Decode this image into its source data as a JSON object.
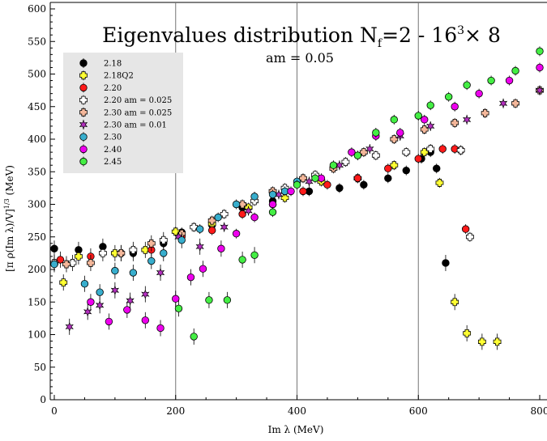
{
  "chart_data": {
    "type": "scatter",
    "title": "Eigenvalues distribution N",
    "title_sub": "f",
    "title_mid": "=2 - 16",
    "title_sup": "3",
    "title_end": "× 8",
    "subtitle": "am = 0.05",
    "xlabel": "Im λ (MeV)",
    "ylabel": "[π ρ(Im λ)/V]",
    "ylabel_sup": "1/3",
    "ylabel_end": " (MeV)",
    "xlim": [
      -5,
      800
    ],
    "ylim": [
      0,
      600
    ],
    "xticks": [
      0,
      200,
      400,
      600,
      800
    ],
    "xtick_labels": [
      "0",
      "200",
      "400",
      "600",
      "800"
    ],
    "yticks": [
      0,
      50,
      100,
      150,
      200,
      250,
      300,
      350,
      400,
      450,
      500,
      550,
      600
    ],
    "ytick_labels": [
      "0",
      "50",
      "100",
      "150",
      "200",
      "250",
      "300",
      "350",
      "400",
      "450",
      "500",
      "550",
      "600"
    ],
    "vlines": [
      200,
      400,
      600
    ],
    "grid": false,
    "legend_position": "top-left",
    "series": [
      {
        "name": "2.18",
        "color": "#000000",
        "marker": "circle",
        "points": [
          [
            0,
            232
          ],
          [
            40,
            230
          ],
          [
            80,
            235
          ],
          [
            130,
            225
          ],
          [
            180,
            240
          ],
          [
            210,
            257
          ],
          [
            260,
            268
          ],
          [
            310,
            295
          ],
          [
            360,
            305
          ],
          [
            420,
            320
          ],
          [
            470,
            325
          ],
          [
            510,
            330
          ],
          [
            550,
            340
          ],
          [
            580,
            352
          ],
          [
            605,
            370
          ],
          [
            620,
            380
          ],
          [
            630,
            355
          ],
          [
            645,
            210
          ]
        ]
      },
      {
        "name": "2.18Q2",
        "color": "#ffff33",
        "marker": "cross",
        "points": [
          [
            15,
            180
          ],
          [
            40,
            220
          ],
          [
            100,
            225
          ],
          [
            150,
            230
          ],
          [
            200,
            258
          ],
          [
            260,
            270
          ],
          [
            320,
            295
          ],
          [
            380,
            310
          ],
          [
            440,
            335
          ],
          [
            500,
            340
          ],
          [
            560,
            360
          ],
          [
            610,
            380
          ],
          [
            635,
            333
          ],
          [
            660,
            150
          ],
          [
            680,
            102
          ],
          [
            705,
            89
          ],
          [
            730,
            89
          ]
        ]
      },
      {
        "name": "2.20",
        "color": "#ff1a1a",
        "marker": "circle",
        "points": [
          [
            10,
            215
          ],
          [
            60,
            220
          ],
          [
            110,
            225
          ],
          [
            160,
            230
          ],
          [
            210,
            250
          ],
          [
            260,
            260
          ],
          [
            310,
            285
          ],
          [
            360,
            300
          ],
          [
            410,
            320
          ],
          [
            450,
            330
          ],
          [
            500,
            340
          ],
          [
            550,
            355
          ],
          [
            600,
            370
          ],
          [
            640,
            385
          ],
          [
            660,
            385
          ],
          [
            670,
            383
          ],
          [
            678,
            262
          ]
        ]
      },
      {
        "name": "2.20 am = 0.025",
        "color": "#ffffff",
        "marker": "cross",
        "points": [
          [
            0,
            210
          ],
          [
            30,
            210
          ],
          [
            80,
            225
          ],
          [
            130,
            230
          ],
          [
            180,
            245
          ],
          [
            230,
            265
          ],
          [
            280,
            285
          ],
          [
            330,
            305
          ],
          [
            380,
            325
          ],
          [
            430,
            345
          ],
          [
            480,
            365
          ],
          [
            530,
            375
          ],
          [
            580,
            380
          ],
          [
            620,
            385
          ],
          [
            670,
            383
          ],
          [
            685,
            250
          ]
        ]
      },
      {
        "name": "2.30 am = 0.025",
        "color": "#f4b79a",
        "marker": "cross",
        "points": [
          [
            20,
            208
          ],
          [
            60,
            210
          ],
          [
            110,
            225
          ],
          [
            160,
            240
          ],
          [
            210,
            255
          ],
          [
            260,
            275
          ],
          [
            310,
            300
          ],
          [
            360,
            320
          ],
          [
            410,
            340
          ],
          [
            460,
            355
          ],
          [
            510,
            380
          ],
          [
            560,
            400
          ],
          [
            610,
            415
          ],
          [
            660,
            425
          ],
          [
            710,
            440
          ],
          [
            760,
            455
          ],
          [
            800,
            475
          ]
        ]
      },
      {
        "name": "2.30 am = 0.01",
        "color": "#b52fc0",
        "marker": "star",
        "points": [
          [
            25,
            112
          ],
          [
            55,
            135
          ],
          [
            75,
            145
          ],
          [
            100,
            168
          ],
          [
            125,
            152
          ],
          [
            150,
            162
          ],
          [
            175,
            195
          ],
          [
            205,
            250
          ],
          [
            240,
            235
          ],
          [
            280,
            265
          ],
          [
            320,
            290
          ],
          [
            370,
            315
          ],
          [
            420,
            335
          ],
          [
            470,
            360
          ],
          [
            520,
            385
          ],
          [
            570,
            405
          ],
          [
            620,
            420
          ],
          [
            680,
            430
          ],
          [
            740,
            455
          ],
          [
            800,
            475
          ]
        ]
      },
      {
        "name": "2.30",
        "color": "#38aecd",
        "marker": "circle",
        "points": [
          [
            0,
            208
          ],
          [
            50,
            178
          ],
          [
            75,
            165
          ],
          [
            100,
            198
          ],
          [
            130,
            195
          ],
          [
            160,
            213
          ],
          [
            180,
            225
          ],
          [
            210,
            245
          ],
          [
            240,
            262
          ],
          [
            270,
            280
          ],
          [
            300,
            300
          ],
          [
            330,
            312
          ],
          [
            360,
            315
          ],
          [
            380,
            320
          ],
          [
            400,
            335
          ]
        ]
      },
      {
        "name": "2.40",
        "color": "#ee00ee",
        "marker": "circle",
        "points": [
          [
            60,
            150
          ],
          [
            90,
            120
          ],
          [
            120,
            138
          ],
          [
            150,
            122
          ],
          [
            175,
            110
          ],
          [
            200,
            155
          ],
          [
            225,
            188
          ],
          [
            245,
            201
          ],
          [
            275,
            232
          ],
          [
            300,
            255
          ],
          [
            330,
            280
          ],
          [
            360,
            300
          ],
          [
            390,
            320
          ],
          [
            440,
            340
          ],
          [
            490,
            380
          ],
          [
            530,
            405
          ],
          [
            570,
            410
          ],
          [
            610,
            430
          ],
          [
            660,
            450
          ],
          [
            700,
            470
          ],
          [
            750,
            490
          ],
          [
            800,
            510
          ]
        ]
      },
      {
        "name": "2.45",
        "color": "#44ee44",
        "marker": "circle",
        "points": [
          [
            205,
            140
          ],
          [
            230,
            97
          ],
          [
            255,
            153
          ],
          [
            285,
            153
          ],
          [
            310,
            215
          ],
          [
            330,
            222
          ],
          [
            360,
            288
          ],
          [
            400,
            330
          ],
          [
            430,
            340
          ],
          [
            460,
            360
          ],
          [
            500,
            375
          ],
          [
            530,
            410
          ],
          [
            560,
            430
          ],
          [
            600,
            436
          ],
          [
            620,
            452
          ],
          [
            650,
            465
          ],
          [
            680,
            483
          ],
          [
            720,
            490
          ],
          [
            760,
            505
          ],
          [
            800,
            535
          ]
        ]
      }
    ]
  }
}
